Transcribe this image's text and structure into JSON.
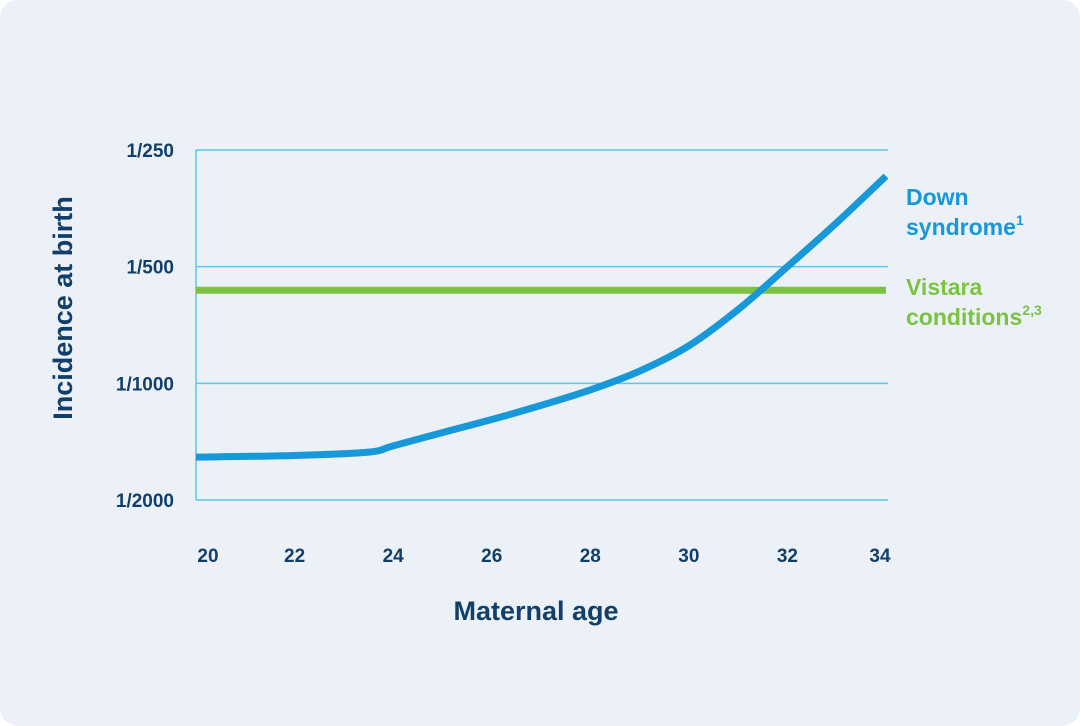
{
  "colors": {
    "grid": "#5cc6ec",
    "down": "#1798d9",
    "vistara": "#7dc242",
    "text": "#123f6a"
  },
  "chart_data": {
    "type": "line",
    "xlabel": "Maternal age",
    "ylabel": "Incidence at birth",
    "x_ticks": [
      20,
      22,
      24,
      26,
      28,
      30,
      32,
      34
    ],
    "y_ticks": [
      {
        "label": "1/250",
        "value": 250
      },
      {
        "label": "1/500",
        "value": 500
      },
      {
        "label": "1/1000",
        "value": 1000
      },
      {
        "label": "1/2000",
        "value": 2000
      }
    ],
    "xlim": [
      20,
      34
    ],
    "y_scale": "log (1 in N)",
    "series": [
      {
        "name": "Down syndrome",
        "superscript": "1",
        "x": [
          20,
          22,
          23.5,
          24,
          25,
          26,
          27,
          28,
          29,
          30,
          31,
          32,
          33,
          34
        ],
        "y": [
          1550,
          1535,
          1505,
          1450,
          1340,
          1240,
          1140,
          1040,
          930,
          800,
          645,
          500,
          385,
          292
        ]
      },
      {
        "name": "Vistara conditions",
        "superscript": "2,3",
        "x": [
          20,
          34
        ],
        "y": [
          575,
          575
        ]
      }
    ]
  }
}
